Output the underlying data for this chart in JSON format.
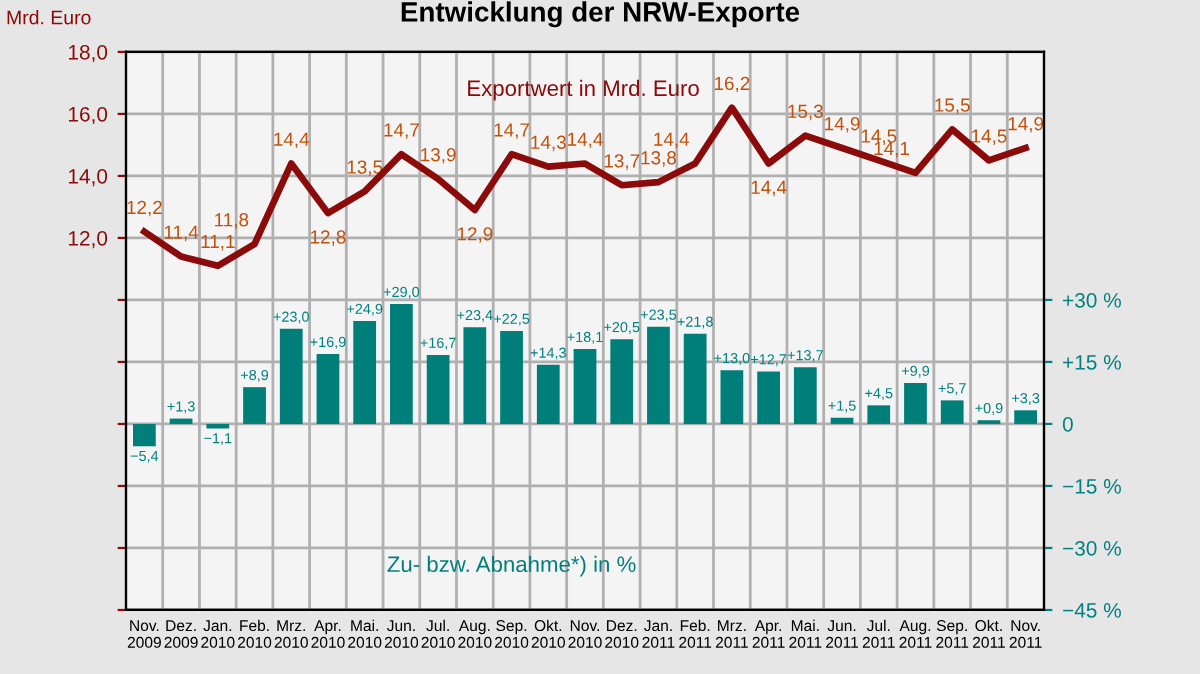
{
  "chart_data": {
    "type": "bar",
    "title": "Entwicklung der NRW-Exporte",
    "ylabel": "Mrd. Euro",
    "categories": [
      "Nov. 2009",
      "Dez. 2009",
      "Jan. 2010",
      "Feb. 2010",
      "Mrz. 2010",
      "Apr. 2010",
      "Mai. 2010",
      "Jun. 2010",
      "Jul. 2010",
      "Aug. 2010",
      "Sep. 2010",
      "Okt. 2010",
      "Nov. 2010",
      "Dez. 2010",
      "Jan. 2011",
      "Feb. 2011",
      "Mrz. 2011",
      "Apr. 2011",
      "Mai. 2011",
      "Jun. 2011",
      "Jul. 2011",
      "Aug. 2011",
      "Sep. 2011",
      "Okt. 2011",
      "Nov. 2011"
    ],
    "series": [
      {
        "name": "Exportwert in Mrd. Euro",
        "type": "line",
        "axis": "y",
        "color": "#8b0a0a",
        "values": [
          12.2,
          11.4,
          11.1,
          11.8,
          14.4,
          12.8,
          13.5,
          14.7,
          13.9,
          12.9,
          14.7,
          14.3,
          14.4,
          13.7,
          13.8,
          14.4,
          16.2,
          14.4,
          15.3,
          14.9,
          14.5,
          14.1,
          15.5,
          14.5,
          14.9
        ],
        "value_labels": [
          "12,2",
          "11,4",
          "11,1",
          "11,8",
          "14,4",
          "12,8",
          "13,5",
          "14,7",
          "13,9",
          "12,9",
          "14,7",
          "14,3",
          "14,4",
          "13,7",
          "13,8",
          "14,4",
          "16,2",
          "14,4",
          "15,3",
          "14,9",
          "14,5",
          "14,1",
          "15,5",
          "14,5",
          "14,9"
        ]
      },
      {
        "name": "Zu- bzw. Abnahme*) in %",
        "axis": "y2",
        "color": "#007f7a",
        "values": [
          -5.4,
          1.3,
          -1.1,
          8.9,
          23.0,
          16.9,
          24.9,
          29.0,
          16.7,
          23.4,
          22.5,
          14.3,
          18.1,
          20.5,
          23.5,
          21.8,
          13.0,
          12.7,
          13.7,
          1.5,
          4.5,
          9.9,
          5.7,
          0.9,
          3.3
        ],
        "value_labels": [
          "−5,4",
          "+1,3",
          "−1,1",
          "+8,9",
          "+23,0",
          "+16,9",
          "+24,9",
          "+29,0",
          "+16,7",
          "+23,4",
          "+22,5",
          "+14,3",
          "+18,1",
          "+20,5",
          "+23,5",
          "+21,8",
          "+13,0",
          "+12,7",
          "+13,7",
          "+1,5",
          "+4,5",
          "+9,9",
          "+5,7",
          "+0,9",
          "+3,3"
        ]
      }
    ],
    "ylim": [
      0,
      18
    ],
    "yticks": [
      {
        "value": 0,
        "label": null
      },
      {
        "value": 2,
        "label": null
      },
      {
        "value": 4,
        "label": null
      },
      {
        "value": 6,
        "label": null
      },
      {
        "value": 8,
        "label": null
      },
      {
        "value": 10,
        "label": null
      },
      {
        "value": 12,
        "label": "12,0"
      },
      {
        "value": 14,
        "label": "14,0"
      },
      {
        "value": 16,
        "label": "16,0"
      },
      {
        "value": 18,
        "label": "18,0"
      }
    ],
    "y2lim": [
      -45,
      90
    ],
    "y2ticks": [
      {
        "value": -45,
        "label": "−45 %"
      },
      {
        "value": -30,
        "label": "−30 %"
      },
      {
        "value": -15,
        "label": "−15 %"
      },
      0,
      {
        "value": 15,
        "label": "+15 %"
      },
      {
        "value": 30,
        "label": "+30 %"
      }
    ],
    "grid": true,
    "legend": false
  }
}
